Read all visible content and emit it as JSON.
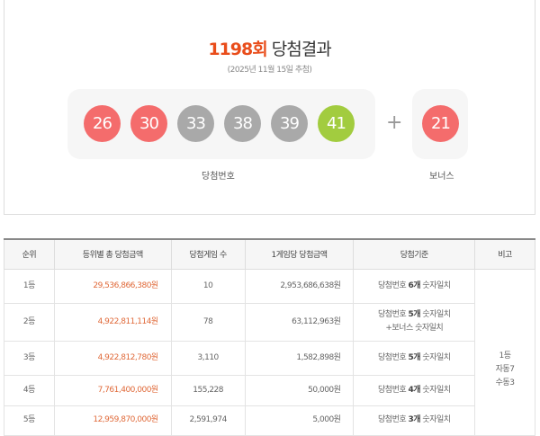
{
  "header": {
    "round": "1198회",
    "title": "당첨결과",
    "date": "(2025년 11월 15일 추첨)"
  },
  "numbers": [
    {
      "value": "26",
      "color": "#f46c6c"
    },
    {
      "value": "30",
      "color": "#f46c6c"
    },
    {
      "value": "33",
      "color": "#a9a9a9"
    },
    {
      "value": "38",
      "color": "#a9a9a9"
    },
    {
      "value": "39",
      "color": "#a9a9a9"
    },
    {
      "value": "41",
      "color": "#a2cc3f"
    }
  ],
  "plus": "+",
  "bonus": {
    "value": "21",
    "color": "#f46c6c"
  },
  "labels": {
    "winning": "당첨번호",
    "bonus": "보너스"
  },
  "table": {
    "headers": [
      "순위",
      "등위별 총 당첨금액",
      "당첨게임 수",
      "1게임당 당첨금액",
      "당첨기준",
      "비고"
    ],
    "rows": [
      {
        "rank": "1등",
        "total": "29,536,866,380원",
        "count": "10",
        "per": "2,953,686,638원",
        "pre": "당첨번호 ",
        "bold": "6개",
        "post": " 숫자일치",
        "extra": ""
      },
      {
        "rank": "2등",
        "total": "4,922,811,114원",
        "count": "78",
        "per": "63,112,963원",
        "pre": "당첨번호 ",
        "bold": "5개",
        "post": " 숫자일치",
        "extra": "+보너스 숫자일치"
      },
      {
        "rank": "3등",
        "total": "4,922,812,780원",
        "count": "3,110",
        "per": "1,582,898원",
        "pre": "당첨번호 ",
        "bold": "5개",
        "post": " 숫자일치",
        "extra": ""
      },
      {
        "rank": "4등",
        "total": "7,761,400,000원",
        "count": "155,228",
        "per": "50,000원",
        "pre": "당첨번호 ",
        "bold": "4개",
        "post": " 숫자일치",
        "extra": ""
      },
      {
        "rank": "5등",
        "total": "12,959,870,000원",
        "count": "2,591,974",
        "per": "5,000원",
        "pre": "당첨번호 ",
        "bold": "3개",
        "post": " 숫자일치",
        "extra": ""
      }
    ],
    "note": [
      "1등",
      "자동7",
      "수동3"
    ]
  }
}
